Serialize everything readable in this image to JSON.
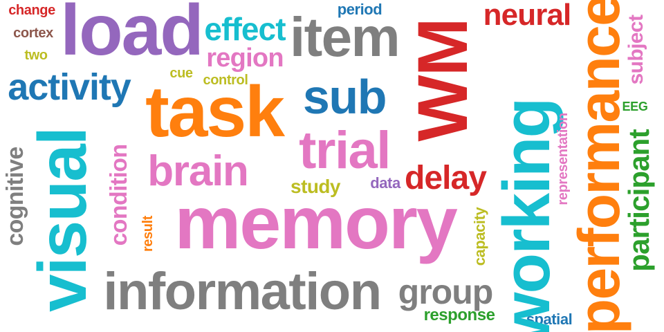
{
  "words": [
    {
      "key": "memory",
      "text": "memory",
      "color": "#e377c2"
    },
    {
      "key": "load",
      "text": "load",
      "color": "#9467bd"
    },
    {
      "key": "task",
      "text": "task",
      "color": "#ff7f0e"
    },
    {
      "key": "information",
      "text": "information",
      "color": "#7f7f7f"
    },
    {
      "key": "working",
      "text": "working",
      "color": "#17becf"
    },
    {
      "key": "performance",
      "text": "performance",
      "color": "#ff7f0e"
    },
    {
      "key": "visual",
      "text": "visual",
      "color": "#17becf"
    },
    {
      "key": "wm",
      "text": "WM",
      "color": "#d62728"
    },
    {
      "key": "trial",
      "text": "trial",
      "color": "#e377c2"
    },
    {
      "key": "item",
      "text": "item",
      "color": "#7f7f7f"
    },
    {
      "key": "sub",
      "text": "sub",
      "color": "#1f77b4"
    },
    {
      "key": "brain",
      "text": "brain",
      "color": "#e377c2"
    },
    {
      "key": "activity",
      "text": "activity",
      "color": "#1f77b4"
    },
    {
      "key": "effect",
      "text": "effect",
      "color": "#17becf"
    },
    {
      "key": "neural",
      "text": "neural",
      "color": "#d62728"
    },
    {
      "key": "group",
      "text": "group",
      "color": "#7f7f7f"
    },
    {
      "key": "participant",
      "text": "participant",
      "color": "#2ca02c"
    },
    {
      "key": "delay",
      "text": "delay",
      "color": "#d62728"
    },
    {
      "key": "region",
      "text": "region",
      "color": "#e377c2"
    },
    {
      "key": "cognitive",
      "text": "cognitive",
      "color": "#7f7f7f"
    },
    {
      "key": "condition",
      "text": "condition",
      "color": "#e377c2"
    },
    {
      "key": "subject",
      "text": "subject",
      "color": "#e377c2"
    },
    {
      "key": "study",
      "text": "study",
      "color": "#bcbd22"
    },
    {
      "key": "change",
      "text": "change",
      "color": "#d62728"
    },
    {
      "key": "cortex",
      "text": "cortex",
      "color": "#8c564b"
    },
    {
      "key": "two",
      "text": "two",
      "color": "#bcbd22"
    },
    {
      "key": "period",
      "text": "period",
      "color": "#1f77b4"
    },
    {
      "key": "cue",
      "text": "cue",
      "color": "#bcbd22"
    },
    {
      "key": "control",
      "text": "control",
      "color": "#bcbd22"
    },
    {
      "key": "data",
      "text": "data",
      "color": "#9467bd"
    },
    {
      "key": "result",
      "text": "result",
      "color": "#ff7f0e"
    },
    {
      "key": "capacity",
      "text": "capacity",
      "color": "#bcbd22"
    },
    {
      "key": "response",
      "text": "response",
      "color": "#2ca02c"
    },
    {
      "key": "spatial",
      "text": "spatial",
      "color": "#1f77b4"
    },
    {
      "key": "representation",
      "text": "representation",
      "color": "#e377c2"
    },
    {
      "key": "eeg",
      "text": "EEG",
      "color": "#2ca02c"
    }
  ]
}
